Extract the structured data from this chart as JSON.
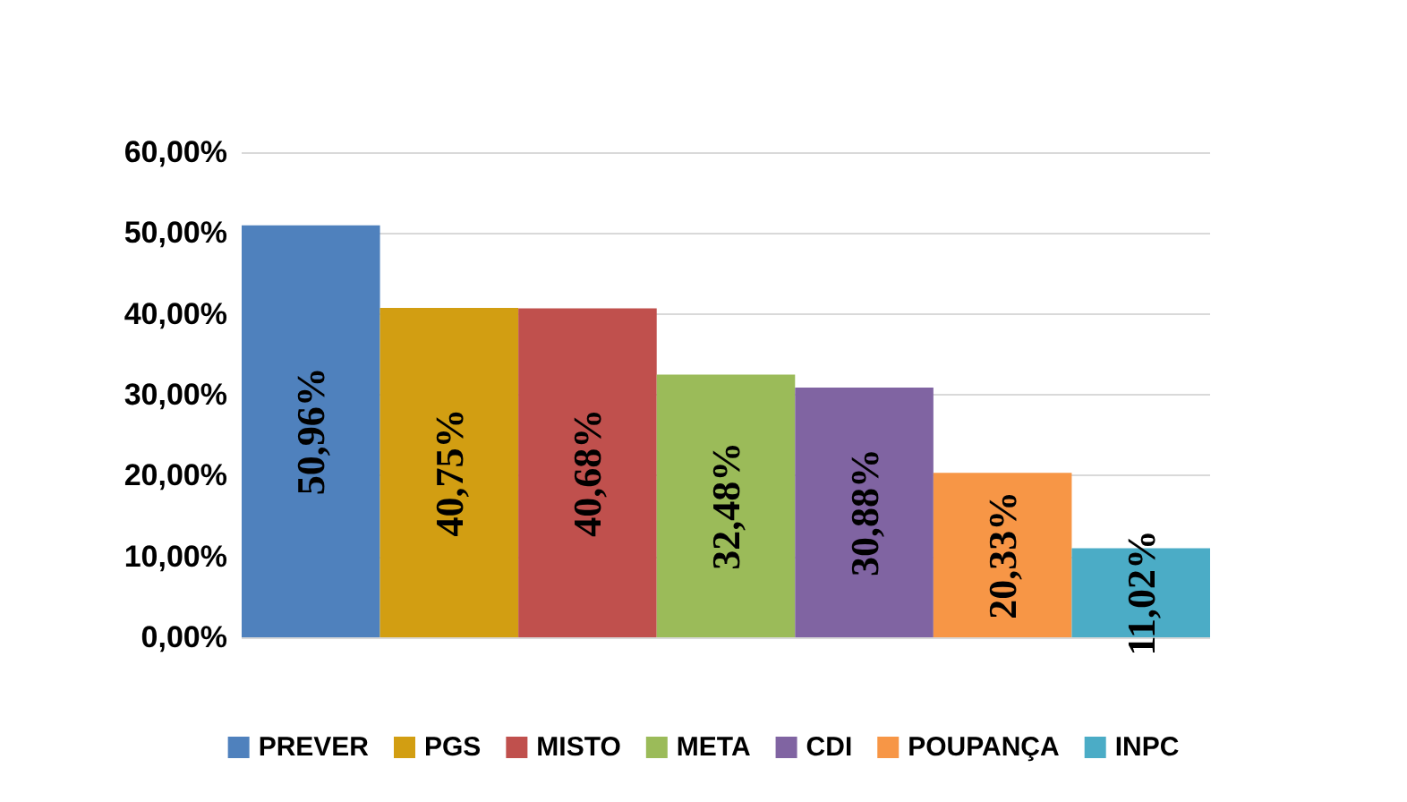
{
  "chart_data": {
    "type": "bar",
    "stacked": true,
    "categories": [
      null,
      null,
      null,
      null,
      null,
      null,
      null
    ],
    "series": [
      {
        "name": "PREVER",
        "color": "#4f81bd",
        "values": [
          50.96,
          null,
          null,
          null,
          null,
          null,
          null
        ],
        "value_labels": [
          "50,96%",
          null,
          null,
          null,
          null,
          null,
          null
        ]
      },
      {
        "name": "PGS",
        "color": "#d29e12",
        "values": [
          null,
          40.75,
          null,
          null,
          null,
          null,
          null
        ],
        "value_labels": [
          null,
          "40,75%",
          null,
          null,
          null,
          null,
          null
        ]
      },
      {
        "name": "MISTO",
        "color": "#c0504d",
        "values": [
          null,
          null,
          40.68,
          null,
          null,
          null,
          null
        ],
        "value_labels": [
          null,
          null,
          "40,68%",
          null,
          null,
          null,
          null
        ]
      },
      {
        "name": "META",
        "color": "#9bbb59",
        "values": [
          null,
          null,
          null,
          32.48,
          null,
          null,
          null
        ],
        "value_labels": [
          null,
          null,
          null,
          "32,48%",
          null,
          null,
          null
        ]
      },
      {
        "name": "CDI",
        "color": "#8064a2",
        "values": [
          null,
          null,
          null,
          null,
          30.88,
          null,
          null
        ],
        "value_labels": [
          null,
          null,
          null,
          null,
          "30,88%",
          null,
          null
        ]
      },
      {
        "name": "POUPANÇA",
        "color": "#f79646",
        "values": [
          null,
          null,
          null,
          null,
          null,
          20.33,
          null
        ],
        "value_labels": [
          null,
          null,
          null,
          null,
          null,
          "20,33%",
          null
        ]
      },
      {
        "name": "INPC",
        "color": "#4bacc6",
        "values": [
          null,
          null,
          null,
          null,
          null,
          null,
          11.02
        ],
        "value_labels": [
          null,
          null,
          null,
          null,
          null,
          null,
          "11,02%"
        ]
      }
    ],
    "ylim": [
      0,
      60
    ],
    "yticks": [
      {
        "value": 0,
        "label": "0,00%"
      },
      {
        "value": 10,
        "label": "10,00%"
      },
      {
        "value": 20,
        "label": "20,00%"
      },
      {
        "value": 30,
        "label": "30,00%"
      },
      {
        "value": 40,
        "label": "40,00%"
      },
      {
        "value": 50,
        "label": "50,00%"
      },
      {
        "value": 60,
        "label": "60,00%"
      }
    ],
    "grid": "y",
    "legend": "bottom"
  }
}
